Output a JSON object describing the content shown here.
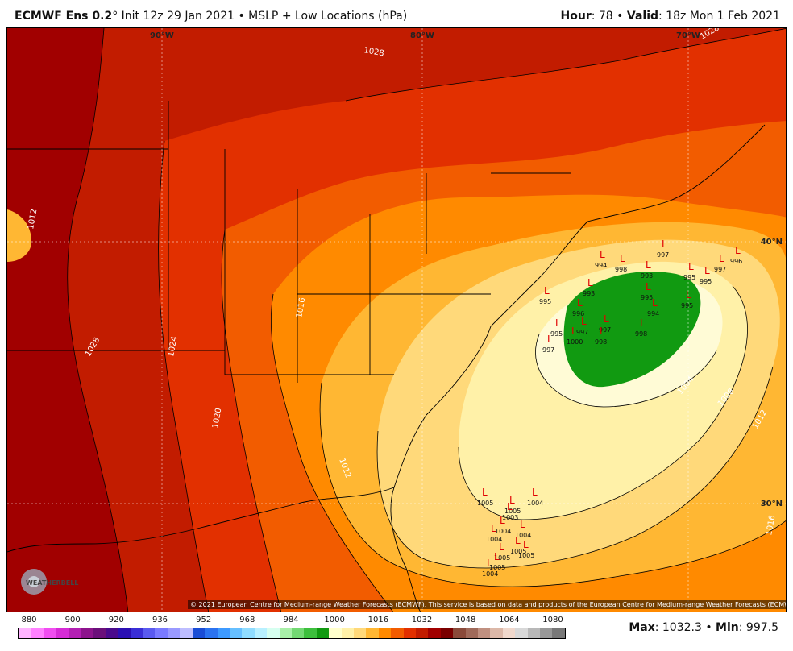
{
  "header": {
    "model": "ECMWF Ens 0.2",
    "degree": "°",
    "init": " Init 12z 29 Jan 2021 • MSLP + Low Locations (hPa)",
    "hour_label": "Hour",
    "hour_value": ": 78 • ",
    "valid_label": "Valid",
    "valid_value": ": 18z Mon 1 Feb 2021"
  },
  "map": {
    "lon_labels": [
      "90°W",
      "80°W",
      "70°W"
    ],
    "lat_labels": [
      "40°N",
      "30°N"
    ],
    "isobar_labels": [
      "1028",
      "1028",
      "1012",
      "1028",
      "1024",
      "1020",
      "1016",
      "1012",
      "1004",
      "1008",
      "1012",
      "1016"
    ],
    "credit": "© 2021 European Centre for Medium-range Weather Forecasts (ECMWF). This service is based on data and products of the European Centre for Medium-range Weather Forecasts (ECMWF).",
    "logo_text": "WEATHERBELL",
    "colors": {
      "p1032": "#a10000",
      "p1028": "#c21c00",
      "p1024": "#e23000",
      "p1020": "#f25c00",
      "p1016": "#ff8a00",
      "p1012": "#ffb733",
      "p1008": "#ffd97a",
      "p1004": "#fff1a8",
      "p1000": "#fffbd6",
      "p996": "#119a11"
    },
    "lows_north": [
      {
        "mark": "L",
        "value": "994"
      },
      {
        "mark": "L",
        "value": "997"
      },
      {
        "mark": "L",
        "value": "996"
      },
      {
        "mark": "L",
        "value": "995"
      },
      {
        "mark": "L",
        "value": "995"
      },
      {
        "mark": "L",
        "value": "997"
      },
      {
        "mark": "L",
        "value": "993"
      },
      {
        "mark": "L",
        "value": "995"
      },
      {
        "mark": "L",
        "value": "994"
      },
      {
        "mark": "L",
        "value": "998"
      },
      {
        "mark": "L",
        "value": "997"
      },
      {
        "mark": "L",
        "value": "993"
      },
      {
        "mark": "L",
        "value": "995"
      },
      {
        "mark": "L",
        "value": "995"
      },
      {
        "mark": "L",
        "value": "996"
      },
      {
        "mark": "L",
        "value": "997"
      },
      {
        "mark": "L",
        "value": "998"
      },
      {
        "mark": "L",
        "value": "1000"
      },
      {
        "mark": "L",
        "value": "995"
      },
      {
        "mark": "L",
        "value": "997"
      },
      {
        "mark": "L",
        "value": "998"
      }
    ],
    "lows_south": [
      {
        "mark": "L",
        "value": "1005"
      },
      {
        "mark": "L",
        "value": "1005"
      },
      {
        "mark": "L",
        "value": "1004"
      },
      {
        "mark": "L",
        "value": "1003"
      },
      {
        "mark": "L",
        "value": "1004"
      },
      {
        "mark": "L",
        "value": "1004"
      },
      {
        "mark": "L",
        "value": "1004"
      },
      {
        "mark": "L",
        "value": "1005"
      },
      {
        "mark": "L",
        "value": "1005"
      },
      {
        "mark": "L",
        "value": "1004"
      },
      {
        "mark": "L",
        "value": "1005"
      },
      {
        "mark": "L",
        "value": "1005"
      }
    ]
  },
  "scale": {
    "labels": [
      "880",
      "900",
      "920",
      "936",
      "952",
      "968",
      "984",
      "1000",
      "1016",
      "1032",
      "1048",
      "1064",
      "1080"
    ],
    "colors": [
      "#ffb3ff",
      "#ff80ff",
      "#f04df0",
      "#d62bd6",
      "#b31fb3",
      "#8c148c",
      "#6b0f7a",
      "#4a0a8c",
      "#2b0fb3",
      "#3a2ed6",
      "#5a5af0",
      "#7a7aff",
      "#9a9aff",
      "#bdbdff",
      "#1a4dd6",
      "#2b73f0",
      "#3d9aff",
      "#66bfff",
      "#8fdcff",
      "#b8f0ff",
      "#d6fff0",
      "#a8f0a8",
      "#73d973",
      "#3dbf3d",
      "#119a11",
      "#ffffcc",
      "#fff1a8",
      "#ffd97a",
      "#ffb733",
      "#ff8a00",
      "#f25c00",
      "#e23000",
      "#c21c00",
      "#a10000",
      "#7a0000",
      "#8a4a3a",
      "#a06a5a",
      "#c09080",
      "#dcb8a8",
      "#f0d8cc",
      "#d8d8d8",
      "#b8b8b8",
      "#989898",
      "#787878"
    ]
  },
  "stats": {
    "max_label": "Max",
    "max_value": ": 1032.3 • ",
    "min_label": "Min",
    "min_value": ": 997.5"
  }
}
